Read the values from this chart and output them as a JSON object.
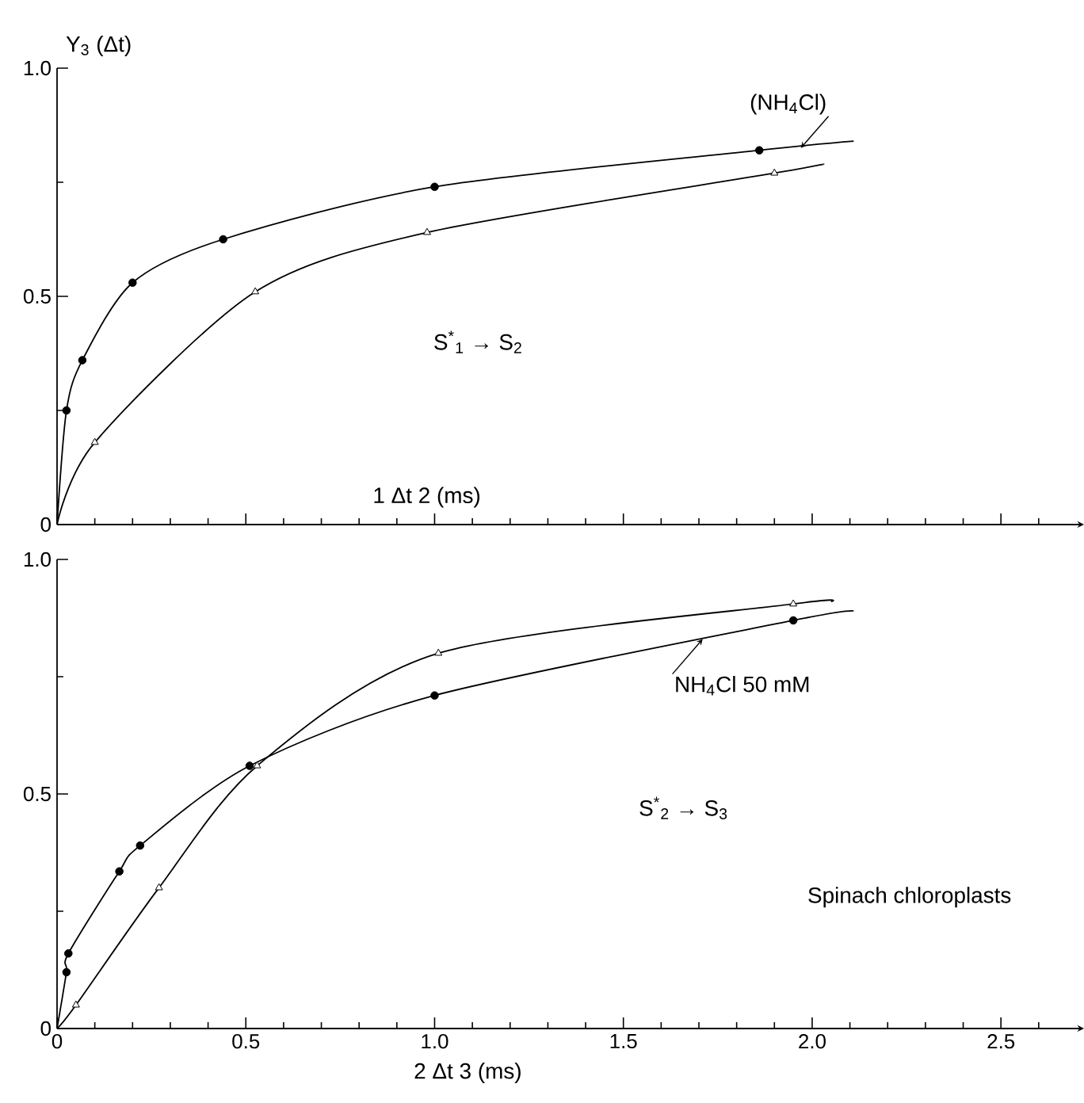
{
  "chart_data": [
    {
      "type": "line",
      "ylabel": "Y$_{3}$ (Δt)",
      "xlabel": "1 Δt  2 (ms)",
      "xlim": [
        0,
        2.72
      ],
      "ylim": [
        0,
        1.0
      ],
      "xticks": [
        0,
        {
          "value": 0.1,
          "label": null
        },
        {
          "value": 0.2,
          "label": null
        },
        {
          "value": 0.3,
          "label": null
        },
        {
          "value": 0.4,
          "label": null
        },
        0.5,
        {
          "value": 0.6,
          "label": null
        },
        {
          "value": 0.7,
          "label": null
        },
        {
          "value": 0.8,
          "label": null
        },
        {
          "value": 0.9,
          "label": null
        },
        1,
        {
          "value": 1.1,
          "label": null
        },
        {
          "value": 1.2,
          "label": null
        },
        {
          "value": 1.3,
          "label": null
        },
        {
          "value": 1.4,
          "label": null
        },
        1.5,
        {
          "value": 1.6,
          "label": null
        },
        {
          "value": 1.7,
          "label": null
        },
        {
          "value": 1.8,
          "label": null
        },
        {
          "value": 1.9,
          "label": null
        },
        2,
        {
          "value": 2.1,
          "label": null
        },
        {
          "value": 2.2,
          "label": null
        },
        {
          "value": 2.3,
          "label": null
        },
        {
          "value": 2.4,
          "label": null
        },
        2.5,
        {
          "value": 2.6,
          "label": null
        }
      ],
      "yticks": [
        0,
        {
          "value": 0.25,
          "label": null
        },
        {
          "value": 0.5,
          "label": "0.5"
        },
        {
          "value": 0.75,
          "label": null
        },
        {
          "value": 1.0,
          "label": "1.0"
        }
      ],
      "tick_labels": "y",
      "series": [
        {
          "type": "line",
          "color": "#000000",
          "marker": "none",
          "x": [
            0,
            0.025,
            0.067,
            0.2,
            0.44,
            1.0,
            1.86,
            2.11
          ],
          "values": [
            0,
            0.25,
            0.36,
            0.53,
            0.625,
            0.74,
            0.82,
            0.84
          ]
        },
        {
          "type": "scatter",
          "color": "#000000",
          "marker": "circle",
          "x": [
            0.025,
            0.067,
            0.2,
            0.44,
            1.0,
            1.86
          ],
          "values": [
            0.25,
            0.36,
            0.53,
            0.625,
            0.74,
            0.82
          ]
        },
        {
          "type": "line",
          "color": "#000000",
          "marker": "none",
          "x": [
            0,
            0.1,
            0.525,
            0.98,
            1.9,
            2.03
          ],
          "values": [
            0,
            0.18,
            0.51,
            0.64,
            0.77,
            0.79
          ]
        },
        {
          "type": "scatter",
          "color": "#000000",
          "marker": "triangle",
          "x": [
            0.1,
            0.525,
            0.98,
            1.9
          ],
          "values": [
            0.18,
            0.51,
            0.64,
            0.77
          ]
        }
      ],
      "annotations": [
        {
          "text": "(NH$_{4}$Cl)",
          "x": 1.97,
          "y": 0.825
        },
        "S$^{*}$$_{1}$ → S$_{2}$"
      ]
    },
    {
      "type": "line",
      "xlabel": "2 Δt  3 (ms)",
      "xlim": [
        0,
        2.72
      ],
      "ylim": [
        0,
        1.0
      ],
      "xticks": [
        0,
        {
          "value": 0.1,
          "label": null
        },
        {
          "value": 0.2,
          "label": null
        },
        {
          "value": 0.3,
          "label": null
        },
        {
          "value": 0.4,
          "label": null
        },
        0.5,
        {
          "value": 0.6,
          "label": null
        },
        {
          "value": 0.7,
          "label": null
        },
        {
          "value": 0.8,
          "label": null
        },
        {
          "value": 0.9,
          "label": null
        },
        {
          "value": 1.0,
          "label": "1.0"
        },
        {
          "value": 1.1,
          "label": null
        },
        {
          "value": 1.2,
          "label": null
        },
        {
          "value": 1.3,
          "label": null
        },
        {
          "value": 1.4,
          "label": null
        },
        1.5,
        {
          "value": 1.6,
          "label": null
        },
        {
          "value": 1.7,
          "label": null
        },
        {
          "value": 1.8,
          "label": null
        },
        {
          "value": 1.9,
          "label": null
        },
        {
          "value": 2.0,
          "label": "2.0"
        },
        {
          "value": 2.1,
          "label": null
        },
        {
          "value": 2.2,
          "label": null
        },
        {
          "value": 2.3,
          "label": null
        },
        {
          "value": 2.4,
          "label": null
        },
        2.5,
        {
          "value": 2.6,
          "label": null
        }
      ],
      "yticks": [
        0,
        {
          "value": 0.25,
          "label": null
        },
        {
          "value": 0.5,
          "label": "0.5"
        },
        {
          "value": 0.75,
          "label": null
        },
        {
          "value": 1.0,
          "label": "1.0"
        }
      ],
      "series": [
        {
          "type": "line",
          "color": "#000000",
          "marker": "none",
          "x": [
            0,
            0.025,
            0.03,
            0.165,
            0.22,
            0.51,
            1.0,
            1.95,
            2.11
          ],
          "values": [
            0,
            0.12,
            0.16,
            0.335,
            0.39,
            0.56,
            0.71,
            0.87,
            0.89
          ]
        },
        {
          "type": "scatter",
          "color": "#000000",
          "marker": "circle",
          "x": [
            0.025,
            0.03,
            0.165,
            0.22,
            0.51,
            1.0,
            1.95
          ],
          "values": [
            0.12,
            0.16,
            0.335,
            0.39,
            0.56,
            0.71,
            0.87
          ]
        },
        {
          "type": "line",
          "color": "#000000",
          "marker": "none",
          "x": [
            0,
            0.05,
            0.27,
            0.53,
            1.01,
            1.95,
            2.05
          ],
          "values": [
            0,
            0.05,
            0.3,
            0.56,
            0.8,
            0.905,
            0.91
          ]
        },
        {
          "type": "scatter",
          "color": "#000000",
          "marker": "triangle",
          "x": [
            0.05,
            0.27,
            0.53,
            1.01,
            1.95
          ],
          "values": [
            0.05,
            0.3,
            0.56,
            0.8,
            0.905
          ]
        }
      ],
      "annotations": [
        {
          "text": "NH$_{4}$Cl 50 mM",
          "x": 1.71,
          "y": 0.83
        },
        "S$^{*}$$_{2}$ → S$_{3}$",
        "Spinach chloroplasts"
      ]
    }
  ]
}
